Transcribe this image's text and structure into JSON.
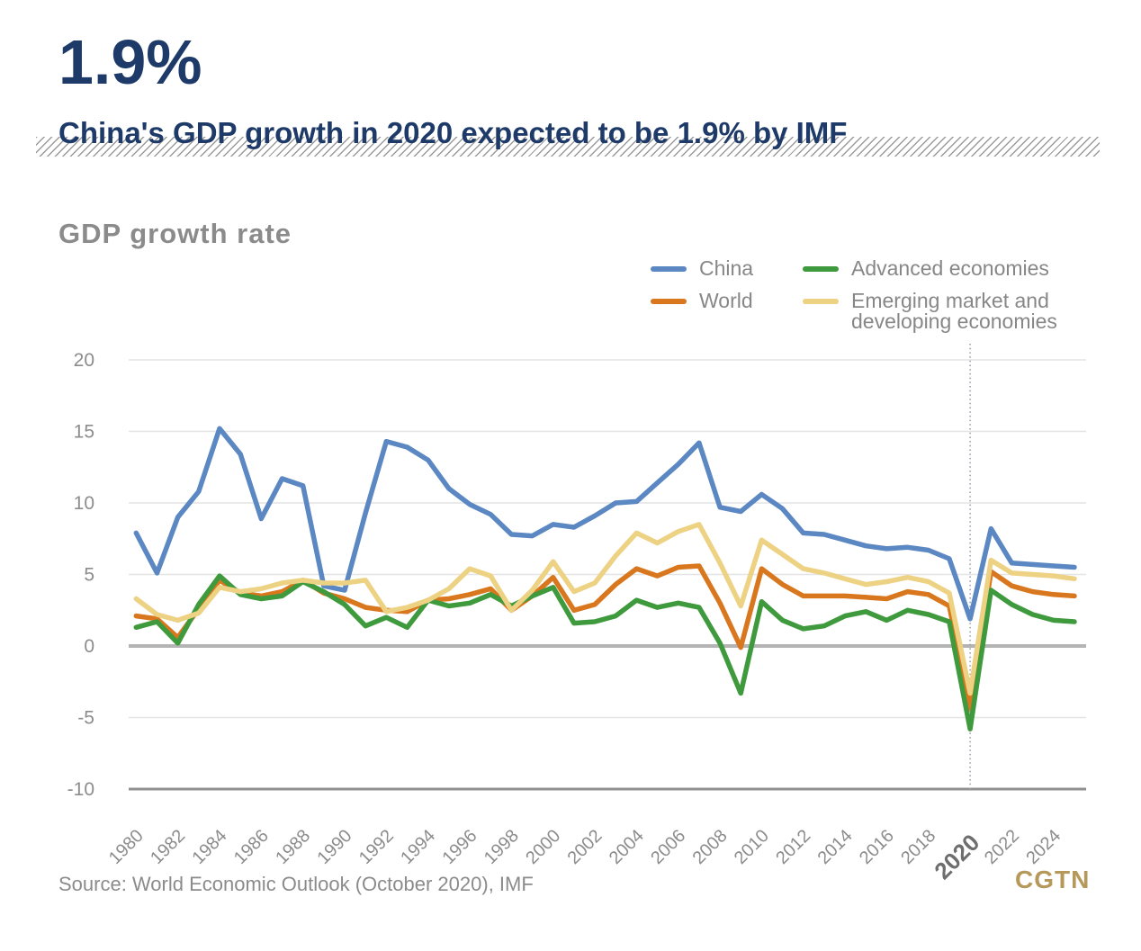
{
  "header": {
    "headline": "1.9%",
    "subtitle": "China's GDP growth in 2020 expected to be 1.9% by IMF"
  },
  "source_note": "Source: World Economic Outlook (October 2020), IMF",
  "brand": "CGTN",
  "colors": {
    "headline_navy": "#1d3a68",
    "text_gray": "#8b8b8b",
    "brand_gold": "#b5985a",
    "grid_line": "#e4e4e4",
    "zero_line": "#b4b4b4",
    "axis_line": "#909090",
    "highlight_dotted_line": "#97a1ad"
  },
  "chart_data": {
    "type": "line",
    "title": "GDP growth rate",
    "xlabel": "",
    "ylabel": "",
    "ylim": [
      -10,
      20
    ],
    "y_ticks": [
      20,
      15,
      10,
      5,
      0,
      -5,
      -10
    ],
    "x_tick_years": [
      1980,
      1982,
      1984,
      1986,
      1988,
      1990,
      1992,
      1994,
      1996,
      1998,
      2000,
      2002,
      2004,
      2006,
      2008,
      2010,
      2012,
      2014,
      2016,
      2018,
      2020,
      2022,
      2024
    ],
    "highlight_year": 2020,
    "grid": true,
    "legend_position": "top-right, two columns, inside plot",
    "years": [
      1980,
      1981,
      1982,
      1983,
      1984,
      1985,
      1986,
      1987,
      1988,
      1989,
      1990,
      1991,
      1992,
      1993,
      1994,
      1995,
      1996,
      1997,
      1998,
      1999,
      2000,
      2001,
      2002,
      2003,
      2004,
      2005,
      2006,
      2007,
      2008,
      2009,
      2010,
      2011,
      2012,
      2013,
      2014,
      2015,
      2016,
      2017,
      2018,
      2019,
      2020,
      2021,
      2022,
      2023,
      2024,
      2025
    ],
    "series": [
      {
        "name": "China",
        "color": "#5b87c2",
        "values": [
          7.9,
          5.1,
          9.0,
          10.8,
          15.2,
          13.4,
          8.9,
          11.7,
          11.2,
          4.2,
          3.9,
          9.3,
          14.3,
          13.9,
          13.0,
          11.0,
          9.9,
          9.2,
          7.8,
          7.7,
          8.5,
          8.3,
          9.1,
          10.0,
          10.1,
          11.4,
          12.7,
          14.2,
          9.7,
          9.4,
          10.6,
          9.6,
          7.9,
          7.8,
          7.4,
          7.0,
          6.8,
          6.9,
          6.7,
          6.1,
          1.9,
          8.2,
          5.8,
          5.7,
          5.6,
          5.5
        ]
      },
      {
        "name": "World",
        "color": "#d9771e",
        "values": [
          2.1,
          1.9,
          0.6,
          2.6,
          4.6,
          3.7,
          3.5,
          3.8,
          4.6,
          3.7,
          3.3,
          2.7,
          2.5,
          2.4,
          3.2,
          3.3,
          3.6,
          4.0,
          2.5,
          3.5,
          4.8,
          2.5,
          2.9,
          4.3,
          5.4,
          4.9,
          5.5,
          5.6,
          3.0,
          -0.1,
          5.4,
          4.3,
          3.5,
          3.5,
          3.5,
          3.4,
          3.3,
          3.8,
          3.6,
          2.8,
          -4.4,
          5.2,
          4.2,
          3.8,
          3.6,
          3.5
        ]
      },
      {
        "name": "Advanced economies",
        "color": "#3e9a3c",
        "values": [
          1.3,
          1.7,
          0.2,
          2.9,
          4.9,
          3.6,
          3.3,
          3.5,
          4.5,
          3.8,
          2.9,
          1.4,
          2.0,
          1.3,
          3.2,
          2.8,
          3.0,
          3.6,
          2.8,
          3.5,
          4.1,
          1.6,
          1.7,
          2.1,
          3.2,
          2.7,
          3.0,
          2.7,
          0.2,
          -3.3,
          3.1,
          1.8,
          1.2,
          1.4,
          2.1,
          2.4,
          1.8,
          2.5,
          2.2,
          1.7,
          -5.8,
          3.9,
          2.9,
          2.2,
          1.8,
          1.7
        ]
      },
      {
        "name": "Emerging market and developing economies",
        "color": "#edd283",
        "values": [
          3.3,
          2.2,
          1.8,
          2.3,
          4.1,
          3.8,
          4.0,
          4.4,
          4.6,
          4.4,
          4.4,
          4.6,
          2.4,
          2.7,
          3.2,
          4.0,
          5.4,
          4.9,
          2.5,
          3.9,
          5.9,
          3.8,
          4.4,
          6.3,
          7.9,
          7.2,
          8.0,
          8.5,
          5.8,
          2.8,
          7.4,
          6.4,
          5.4,
          5.1,
          4.7,
          4.3,
          4.5,
          4.8,
          4.5,
          3.7,
          -3.3,
          6.0,
          5.1,
          5.0,
          4.9,
          4.7
        ]
      }
    ]
  }
}
